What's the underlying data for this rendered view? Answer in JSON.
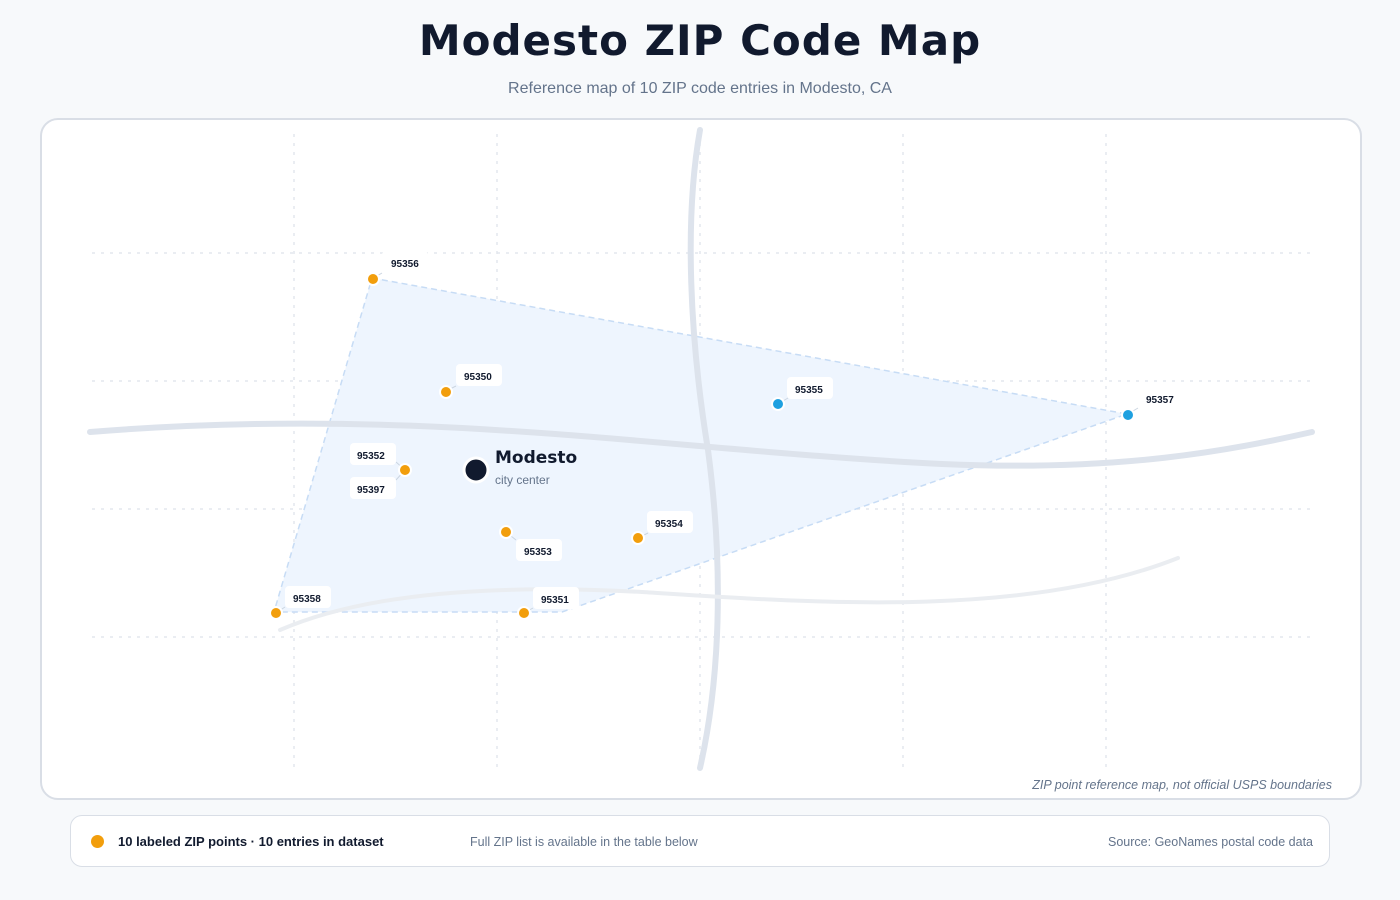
{
  "header": {
    "title": "Modesto ZIP Code Map",
    "subtitle": "Reference map of 10 ZIP code entries in Modesto, CA"
  },
  "map": {
    "city": {
      "name": "Modesto",
      "sublabel": "city center"
    },
    "note": "ZIP point reference map, not official USPS boundaries",
    "colors": {
      "labeled_point": "#f29e0c",
      "highlight_point": "#1ea0e0",
      "city_marker": "#111a2e",
      "coverage_fill": "#eef5fe"
    },
    "zip_points": [
      {
        "zip": "95356",
        "color": "orange"
      },
      {
        "zip": "95350",
        "color": "orange"
      },
      {
        "zip": "95355",
        "color": "blue"
      },
      {
        "zip": "95357",
        "color": "blue"
      },
      {
        "zip": "95352",
        "color": "orange"
      },
      {
        "zip": "95397",
        "color": "orange"
      },
      {
        "zip": "95353",
        "color": "orange"
      },
      {
        "zip": "95354",
        "color": "orange"
      },
      {
        "zip": "95358",
        "color": "orange"
      },
      {
        "zip": "95351",
        "color": "orange"
      }
    ]
  },
  "legend": {
    "label": "10 labeled ZIP points · 10 entries in dataset",
    "note": "Full ZIP list is available in the table below",
    "source": "Source: GeoNames postal code data"
  }
}
